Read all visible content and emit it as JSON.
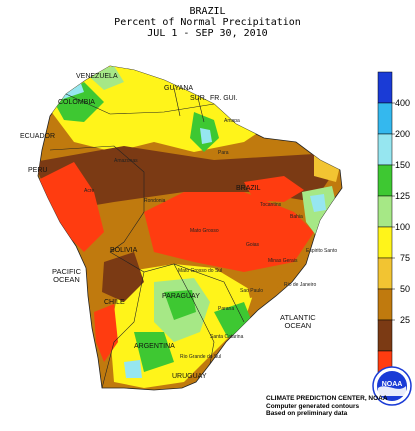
{
  "title": {
    "line1": "BRAZIL",
    "line2": "Percent of Normal Precipitation",
    "line3": "JUL  1 - SEP 30, 2010"
  },
  "legend": {
    "colors": [
      "#1a3bd6",
      "#34b8ee",
      "#96e6f0",
      "#3ec832",
      "#a6e886",
      "#fff41a",
      "#f2c432",
      "#c07a0e",
      "#7b3a14",
      "#ff3c10"
    ],
    "labels": [
      "400",
      "200",
      "150",
      "125",
      "100",
      "75",
      "50",
      "25"
    ]
  },
  "oceans": {
    "pacific": [
      "PACIFIC",
      "OCEAN"
    ],
    "atlantic": [
      "ATLANTIC",
      "OCEAN"
    ]
  },
  "countries": [
    "VENEZUELA",
    "GUYANA",
    "SUR.",
    "FR. GUI.",
    "COLOMBIA",
    "ECUADOR",
    "PERU",
    "BRAZIL",
    "BOLIVIA",
    "PARAGUAY",
    "CHILE",
    "ARGENTINA",
    "URUGUAY"
  ],
  "states": [
    "Amazonas",
    "Para",
    "Amapa",
    "Mato Grosso",
    "Goias",
    "Rondonia",
    "Acre",
    "Minas Gerais",
    "Bahia",
    "Tocantins",
    "Sao Paulo",
    "Parana",
    "Santa Catarina",
    "Rio Grande do Sul",
    "Mato Grosso do Sul",
    "Rio de Janeiro",
    "Espirito Santo"
  ],
  "credits": [
    "CLIMATE PREDICTION CENTER, NOAA",
    "Computer generated contours",
    "Based on preliminary data"
  ],
  "logo_text": "NOAA"
}
